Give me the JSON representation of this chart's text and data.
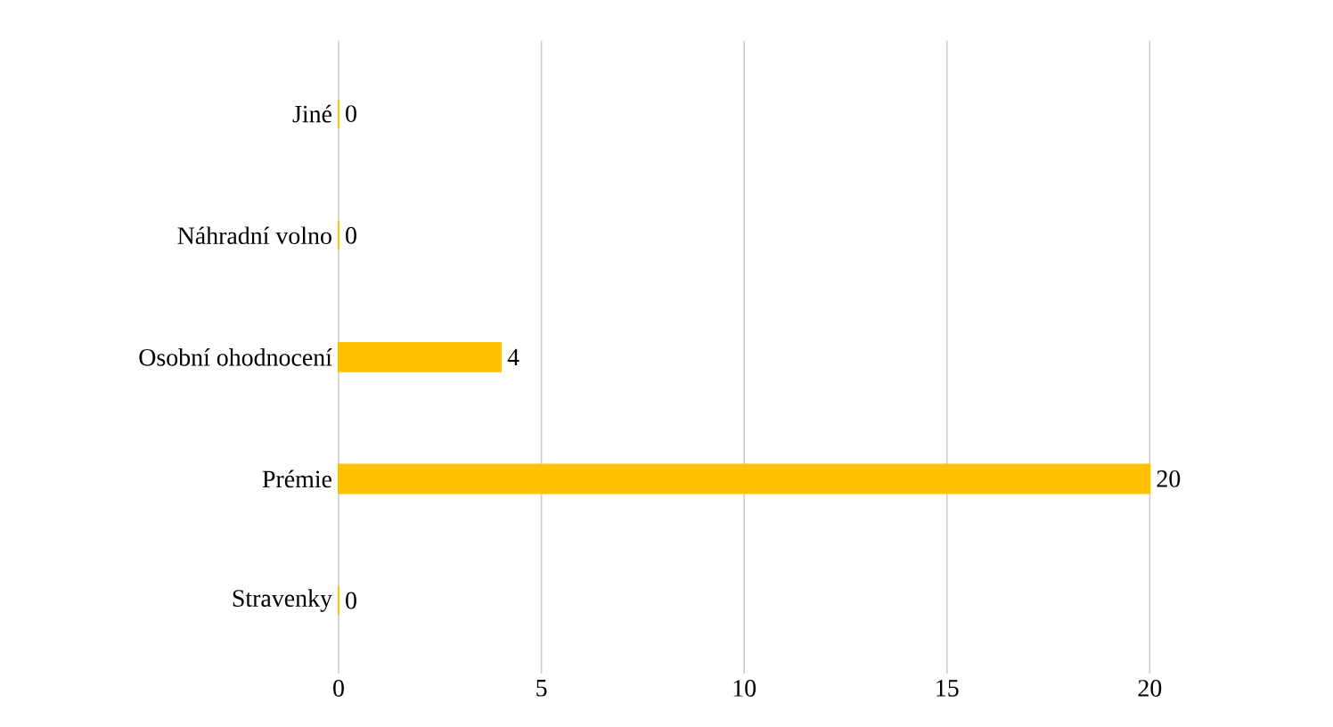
{
  "chart_data": {
    "type": "bar",
    "orientation": "horizontal",
    "categories": [
      "Jiné",
      "Náhradní volno",
      "Osobní ohodnocení",
      "Prémie",
      "Stravenky"
    ],
    "values": [
      0,
      0,
      4,
      20,
      0
    ],
    "color": "#ffc000",
    "xlim": [
      0,
      20
    ],
    "xticks": [
      0,
      5,
      10,
      15,
      20
    ],
    "grid": "x",
    "data_labels": true
  }
}
